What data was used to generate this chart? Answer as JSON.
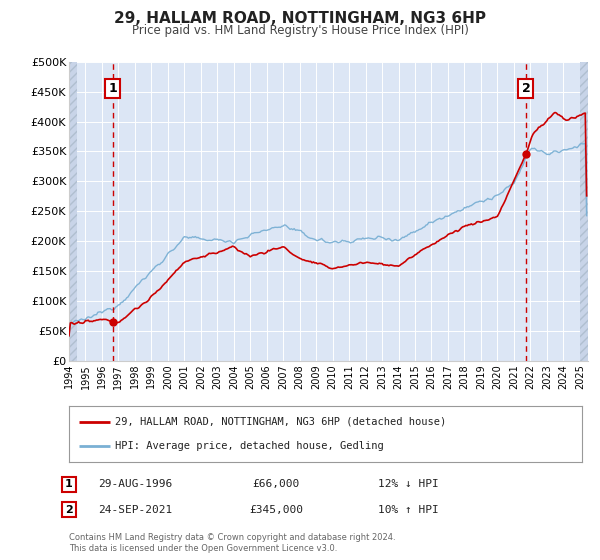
{
  "title": "29, HALLAM ROAD, NOTTINGHAM, NG3 6HP",
  "subtitle": "Price paid vs. HM Land Registry's House Price Index (HPI)",
  "bg_color": "#ffffff",
  "plot_bg_color": "#dce6f5",
  "hatch_color": "#c8d4e8",
  "grid_color": "#ffffff",
  "xmin": 1994.0,
  "xmax": 2025.5,
  "ymin": 0,
  "ymax": 500000,
  "yticks": [
    0,
    50000,
    100000,
    150000,
    200000,
    250000,
    300000,
    350000,
    400000,
    450000,
    500000
  ],
  "ytick_labels": [
    "£0",
    "£50K",
    "£100K",
    "£150K",
    "£200K",
    "£250K",
    "£300K",
    "£350K",
    "£400K",
    "£450K",
    "£500K"
  ],
  "xticks": [
    1994,
    1995,
    1996,
    1997,
    1998,
    1999,
    2000,
    2001,
    2002,
    2003,
    2004,
    2005,
    2006,
    2007,
    2008,
    2009,
    2010,
    2011,
    2012,
    2013,
    2014,
    2015,
    2016,
    2017,
    2018,
    2019,
    2020,
    2021,
    2022,
    2023,
    2024,
    2025
  ],
  "sale1_date": 1996.66,
  "sale1_price": 66000,
  "sale2_date": 2021.73,
  "sale2_price": 345000,
  "price_line_color": "#cc0000",
  "hpi_line_color": "#7ab0d4",
  "vline_color": "#cc0000",
  "legend_border_color": "#aaaaaa",
  "legend_label1": "29, HALLAM ROAD, NOTTINGHAM, NG3 6HP (detached house)",
  "legend_label2": "HPI: Average price, detached house, Gedling",
  "footnote": "Contains HM Land Registry data © Crown copyright and database right 2024.\nThis data is licensed under the Open Government Licence v3.0.",
  "table_label1_date": "29-AUG-1996",
  "table_label1_price": "£66,000",
  "table_label1_hpi": "12% ↓ HPI",
  "table_label2_date": "24-SEP-2021",
  "table_label2_price": "£345,000",
  "table_label2_hpi": "10% ↑ HPI"
}
